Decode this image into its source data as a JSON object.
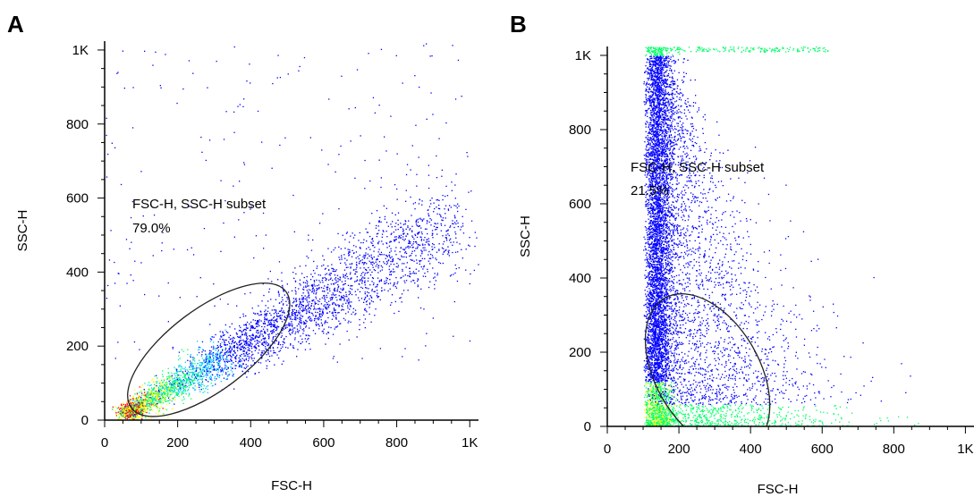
{
  "chart_data": [
    {
      "panel": "A",
      "type": "scatter",
      "title": "",
      "xlabel": "FSC-H",
      "ylabel": "SSC-H",
      "xlim": [
        0,
        1024
      ],
      "ylim": [
        0,
        1024
      ],
      "x_ticks": [
        {
          "value": 0,
          "label": "0"
        },
        {
          "value": 200,
          "label": "200"
        },
        {
          "value": 400,
          "label": "400"
        },
        {
          "value": 600,
          "label": "600"
        },
        {
          "value": 800,
          "label": "800"
        },
        {
          "value": 1000,
          "label": "1K"
        }
      ],
      "y_ticks": [
        {
          "value": 0,
          "label": "0"
        },
        {
          "value": 200,
          "label": "200"
        },
        {
          "value": 400,
          "label": "400"
        },
        {
          "value": 600,
          "label": "600"
        },
        {
          "value": 800,
          "label": "800"
        },
        {
          "value": 1000,
          "label": "1K"
        }
      ],
      "grid": false,
      "gate": {
        "name": "FSC-H, SSC-H subset",
        "percent": "79.0%",
        "shape": "ellipse",
        "center": [
          285,
          190
        ],
        "semi_axes": [
          265,
          110
        ],
        "rotation_deg": 37
      },
      "population": {
        "description_points": [
          [
            120,
            55
          ],
          [
            200,
            95
          ],
          [
            280,
            130
          ],
          [
            360,
            185
          ],
          [
            450,
            255
          ],
          [
            560,
            340
          ],
          [
            700,
            430
          ],
          [
            880,
            520
          ]
        ],
        "dense_core": [
          [
            80,
            30
          ],
          [
            150,
            65
          ],
          [
            230,
            105
          ],
          [
            310,
            140
          ],
          [
            380,
            180
          ]
        ],
        "heatmap_colors": [
          "#0000ff",
          "#00c8ff",
          "#00ff66",
          "#ffff00",
          "#ff0000"
        ]
      }
    },
    {
      "panel": "B",
      "type": "scatter",
      "title": "",
      "xlabel": "FSC-H",
      "ylabel": "SSC-H",
      "xlim": [
        0,
        1024
      ],
      "ylim": [
        0,
        1024
      ],
      "x_ticks": [
        {
          "value": 0,
          "label": "0"
        },
        {
          "value": 200,
          "label": "200"
        },
        {
          "value": 400,
          "label": "400"
        },
        {
          "value": 600,
          "label": "600"
        },
        {
          "value": 800,
          "label": "800"
        },
        {
          "value": 1000,
          "label": "1K"
        }
      ],
      "y_ticks": [
        {
          "value": 0,
          "label": "0"
        },
        {
          "value": 200,
          "label": "200"
        },
        {
          "value": 400,
          "label": "400"
        },
        {
          "value": 600,
          "label": "600"
        },
        {
          "value": 800,
          "label": "800"
        },
        {
          "value": 1000,
          "label": "1K"
        }
      ],
      "grid": false,
      "gate": {
        "name": "FSC-H, SSC-H subset",
        "percent": "21.5%",
        "shape": "ellipse",
        "center": [
          280,
          145
        ],
        "semi_axes": [
          240,
          140
        ],
        "rotation_deg": -60
      },
      "population": {
        "vertical_band_x": [
          100,
          150
        ],
        "spread_x_max": 600,
        "dense_core": [
          [
            110,
            20
          ],
          [
            160,
            25
          ],
          [
            220,
            30
          ]
        ],
        "heatmap_colors": [
          "#0000ff",
          "#00c8ff",
          "#00ff66",
          "#ffff00",
          "#ff0000"
        ]
      }
    }
  ]
}
